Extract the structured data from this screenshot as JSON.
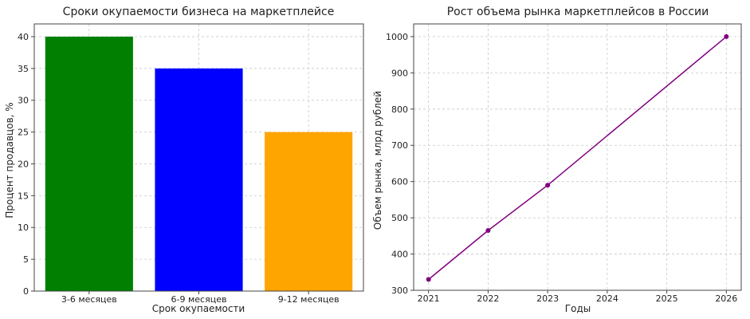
{
  "chart_data": [
    {
      "type": "bar",
      "title": "Сроки окупаемости бизнеса на маркетплейсе",
      "xlabel": "Срок окупаемости",
      "ylabel": "Процент продавцов, %",
      "categories": [
        "3-6 месяцев",
        "6-9 месяцев",
        "9-12 месяцев"
      ],
      "values": [
        40,
        35,
        25
      ],
      "colors": [
        "#007f00",
        "#0000ff",
        "#ffa500"
      ],
      "ylim": [
        0,
        42
      ],
      "yticks": [
        0,
        5,
        10,
        15,
        20,
        25,
        30,
        35,
        40
      ],
      "grid": true
    },
    {
      "type": "line",
      "title": "Рост объема рынка маркетплейсов в России",
      "xlabel": "Годы",
      "ylabel": "Объем рынка, млрд рублей",
      "x": [
        2021,
        2022,
        2023,
        2026
      ],
      "y": [
        330,
        465,
        590,
        1000
      ],
      "color": "#800080",
      "xlim": [
        2020.75,
        2026.25
      ],
      "ylim": [
        300,
        1035
      ],
      "xticks": [
        2021,
        2022,
        2023,
        2024,
        2025,
        2026
      ],
      "yticks": [
        300,
        400,
        500,
        600,
        700,
        800,
        900,
        1000
      ],
      "grid": true
    }
  ]
}
